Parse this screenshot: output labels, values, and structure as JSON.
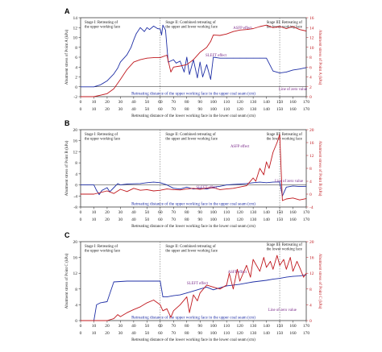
{
  "figure": {
    "panel_labels": [
      "A",
      "B",
      "C"
    ]
  },
  "colors": {
    "blue_series": "#1f2fa6",
    "red_series": "#c0181e",
    "axis": "#222222",
    "divider": "#555555"
  },
  "chart_data": [
    {
      "panel": "A",
      "type": "line",
      "xlabel": "Retreating distance of the lower working face in the lower coal seam (cm)",
      "x2label": "Retreating distance of the upper working face in the upper coal seam (cm)",
      "ylabel": "Abutment stress of Point A (kPa)",
      "y2label": "Abutment stress of Point A (kPa)",
      "xlim": [
        0,
        170
      ],
      "ylim": [
        -2,
        14
      ],
      "y2lim": [
        0,
        16
      ],
      "x_ticks": [
        0,
        10,
        20,
        30,
        40,
        50,
        60,
        70,
        80,
        90,
        100,
        110,
        120,
        130,
        140,
        150,
        160,
        170
      ],
      "x2_ticks": [
        "0",
        "10",
        "20",
        "30",
        "40",
        "50",
        "60",
        "70",
        "80",
        "90",
        "100",
        "110",
        "120",
        "130",
        "140",
        "150",
        "160",
        "170"
      ],
      "y_ticks": [
        -2,
        0,
        2,
        4,
        6,
        8,
        10,
        12,
        14
      ],
      "y2_ticks": [
        0,
        2,
        4,
        6,
        8,
        10,
        12,
        14,
        16
      ],
      "stage_dividers": [
        60,
        150
      ],
      "stages": [
        "Stage I: Retreating of\nthe upper working face",
        "Stage II: Combined retreating of\nthe upper and lower working face",
        "Stage III: Retreating of\nthe lower working face"
      ],
      "annotations": [
        "ASFP effect",
        "SLEFT effect",
        "Line of zero value"
      ],
      "series": [
        {
          "axis": "left",
          "color": "blue",
          "x": [
            0,
            10,
            15,
            20,
            25,
            28,
            30,
            35,
            38,
            40,
            42,
            45,
            48,
            50,
            52,
            55,
            58,
            60,
            61,
            62,
            64,
            66,
            70,
            72,
            75,
            78,
            80,
            82,
            85,
            88,
            90,
            92,
            95,
            98,
            100,
            105,
            110,
            115,
            120,
            125,
            130,
            135,
            140,
            145,
            150,
            155,
            160,
            165,
            170
          ],
          "y": [
            0,
            0,
            0.4,
            1.2,
            2.6,
            3.8,
            5,
            6.5,
            8,
            9.5,
            10.8,
            12,
            11.2,
            12,
            11.6,
            12.3,
            11.8,
            11.7,
            10.5,
            12.5,
            11.5,
            5,
            5.5,
            4.8,
            5.2,
            3,
            6,
            2.5,
            5.5,
            1.8,
            5,
            2,
            4.5,
            1.5,
            6,
            5.8,
            5.8,
            5.8,
            5.8,
            5.8,
            5.8,
            5.8,
            5.8,
            3.2,
            2.8,
            3,
            3.4,
            3.6,
            3.9
          ]
        },
        {
          "axis": "right",
          "color": "red",
          "x": [
            0,
            10,
            20,
            25,
            30,
            35,
            40,
            45,
            50,
            55,
            60,
            65,
            68,
            70,
            75,
            80,
            85,
            90,
            95,
            98,
            100,
            105,
            110,
            115,
            120,
            125,
            130,
            135,
            140,
            145,
            150,
            155,
            160,
            165,
            170
          ],
          "y": [
            0,
            0,
            0.6,
            1.6,
            3.5,
            5.5,
            7,
            7.5,
            7.8,
            7.9,
            7.9,
            8.4,
            5,
            6,
            6.2,
            6.5,
            7.5,
            9,
            10,
            11.2,
            12.5,
            12.4,
            12.7,
            13.2,
            13.5,
            13.6,
            13.8,
            14.2,
            14.5,
            14,
            14.2,
            13.8,
            14.2,
            13.6,
            13.3
          ]
        }
      ]
    },
    {
      "panel": "B",
      "type": "line",
      "xlabel": "Retreating distance of the lower working face in the lower coal seam (cm)",
      "x2label": "Retreating distance of the upper working face in the upper coal seam (cm)",
      "ylabel": "Abutment stress of Point B (kPa)",
      "y2label": "Abutment stress of Point B (kPa)",
      "xlim": [
        0,
        170
      ],
      "ylim": [
        -8,
        20
      ],
      "y2lim": [
        -4,
        20
      ],
      "x_ticks": [
        0,
        10,
        20,
        30,
        40,
        50,
        60,
        70,
        80,
        90,
        100,
        110,
        120,
        130,
        140,
        150,
        160,
        170
      ],
      "x2_ticks": [
        "0",
        "10",
        "20",
        "30",
        "40",
        "50",
        "60",
        "70",
        "80",
        "90",
        "100",
        "110",
        "120",
        "130",
        "140",
        "150",
        "160",
        "170"
      ],
      "y_ticks": [
        -8,
        -4,
        0,
        4,
        8,
        12,
        16,
        20
      ],
      "y2_ticks": [
        -4,
        0,
        4,
        8,
        12,
        16,
        20
      ],
      "stage_dividers": [
        60,
        150
      ],
      "stages": [
        "Stage I: Retreating of\nthe upper working face",
        "Stage II: Combined retreating of\nthe upper and lower working face",
        "Stage III: Retreating of\nthe lower working face"
      ],
      "annotations": [
        "ASFP effect",
        "SLEFT effect",
        "Line of zero value"
      ],
      "series": [
        {
          "axis": "left",
          "color": "blue",
          "x": [
            0,
            5,
            10,
            12,
            14,
            16,
            20,
            22,
            25,
            28,
            30,
            35,
            40,
            45,
            50,
            55,
            60,
            65,
            70,
            75,
            80,
            85,
            90,
            95,
            100,
            105,
            110,
            115,
            120,
            125,
            130,
            135,
            140,
            145,
            150,
            152,
            155,
            160,
            165,
            170
          ],
          "y": [
            0,
            0,
            0,
            -2,
            -3.5,
            -2,
            -1,
            -2.5,
            -1,
            0.5,
            0,
            0.3,
            0.4,
            0.5,
            0.8,
            1,
            0.8,
            0,
            -1.2,
            -1.5,
            -0.8,
            -1.5,
            -1.2,
            -1.5,
            -0.8,
            -0.5,
            0,
            0.2,
            0.3,
            0.5,
            0.8,
            1,
            0.8,
            1,
            1.1,
            -4,
            -0.8,
            -0.4,
            -0.6,
            -0.5
          ]
        },
        {
          "axis": "right",
          "color": "red",
          "x": [
            0,
            10,
            15,
            20,
            25,
            30,
            35,
            40,
            45,
            50,
            55,
            60,
            65,
            70,
            75,
            80,
            85,
            90,
            95,
            100,
            105,
            110,
            115,
            120,
            125,
            130,
            132,
            135,
            138,
            140,
            142,
            145,
            148,
            150,
            152,
            155,
            160,
            165,
            170
          ],
          "y": [
            0,
            0,
            0.5,
            1,
            0.2,
            1.5,
            0.8,
            1.8,
            1.2,
            1.4,
            1,
            1.2,
            1.6,
            1.4,
            1.3,
            1.6,
            1.8,
            1.5,
            1.9,
            2,
            1.4,
            1.6,
            1.8,
            2.2,
            2.6,
            5,
            4,
            8,
            6,
            10,
            8,
            13,
            16,
            18.5,
            -2,
            -1.5,
            -1.2,
            -1.8,
            -1.4
          ]
        }
      ]
    },
    {
      "panel": "C",
      "type": "line",
      "xlabel": "Retreating distance of the lower working face in the lower coal seam (cm)",
      "x2label": "Retreating distance of the upper working face in the upper coal seam (cm)",
      "ylabel": "Abutment stress of Point C (kPa)",
      "y2label": "Abutment stress of Point C (kPa)",
      "xlim": [
        0,
        170
      ],
      "ylim": [
        0,
        20
      ],
      "y2lim": [
        0,
        20
      ],
      "x_ticks": [
        0,
        10,
        20,
        30,
        40,
        50,
        60,
        70,
        80,
        90,
        100,
        110,
        120,
        130,
        140,
        150,
        160,
        170
      ],
      "x2_ticks": [
        "0",
        "10",
        "20",
        "30",
        "40",
        "50",
        "60",
        "70",
        "80",
        "90",
        "100",
        "110",
        "120",
        "130",
        "140",
        "150",
        "160",
        "170"
      ],
      "y_ticks": [
        0,
        4,
        8,
        12,
        16,
        20
      ],
      "y2_ticks": [
        0,
        4,
        8,
        12,
        16,
        20
      ],
      "stage_dividers": [
        60,
        150
      ],
      "stages": [
        "Stage I: Retreating of\nthe upper working face",
        "Stage II: Combined retreating of\nthe upper and lower working face",
        "Stage III: Retreating of\nthe lower working face"
      ],
      "annotations": [
        "ASFP effect",
        "SLEFT effect",
        "Line of zero value"
      ],
      "series": [
        {
          "axis": "left",
          "color": "blue",
          "x": [
            0,
            5,
            10,
            12,
            15,
            20,
            25,
            30,
            35,
            40,
            45,
            50,
            55,
            58,
            60,
            62,
            65,
            70,
            75,
            80,
            85,
            90,
            95,
            100,
            105,
            110,
            115,
            120,
            125,
            130,
            135,
            140,
            145,
            150,
            155,
            160,
            165,
            170
          ],
          "y": [
            0,
            0,
            0,
            4,
            4.5,
            4.8,
            9.8,
            9.9,
            10,
            10,
            10,
            10,
            10,
            10,
            10,
            6,
            6,
            6.3,
            6.5,
            7,
            7.5,
            8,
            8.5,
            7.8,
            8.3,
            8.8,
            9,
            9.2,
            9.5,
            9.8,
            10,
            10.2,
            10.5,
            10.7,
            11,
            11.2,
            11.3,
            11.6
          ]
        },
        {
          "axis": "right",
          "color": "red",
          "x": [
            0,
            10,
            20,
            25,
            28,
            30,
            35,
            40,
            45,
            50,
            55,
            60,
            62,
            65,
            68,
            70,
            75,
            80,
            82,
            85,
            88,
            90,
            95,
            100,
            105,
            110,
            112,
            115,
            118,
            120,
            125,
            128,
            130,
            135,
            138,
            140,
            143,
            145,
            148,
            150,
            153,
            155,
            158,
            160,
            163,
            165,
            168,
            170
          ],
          "y": [
            0,
            0,
            0,
            0.5,
            1.5,
            1,
            2,
            2.8,
            3.5,
            4.5,
            5.2,
            4,
            2.5,
            3,
            0.8,
            2.5,
            4,
            6,
            2,
            6.5,
            5,
            7,
            9,
            8.5,
            8,
            9,
            12,
            8,
            13,
            10,
            14,
            11,
            15.5,
            12.5,
            16,
            13.5,
            15,
            13,
            16.5,
            14,
            15.5,
            13,
            16,
            12.5,
            15,
            13.5,
            11,
            12
          ]
        }
      ]
    }
  ]
}
